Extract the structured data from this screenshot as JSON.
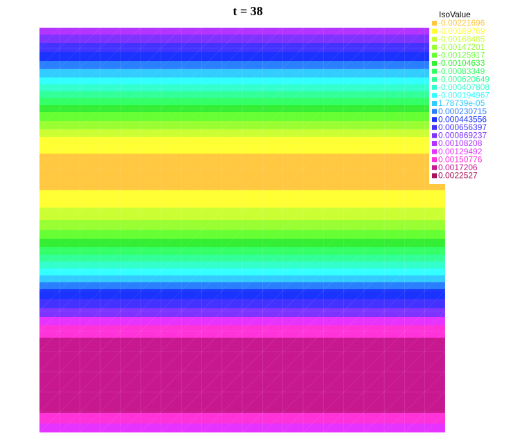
{
  "title": "t = 38",
  "legend": {
    "title": "IsoValue",
    "items": [
      {
        "label": "-0.00221696",
        "color": "#ffc840"
      },
      {
        "label": "-0.00189769",
        "color": "#ffff33"
      },
      {
        "label": "-0.00168485",
        "color": "#ccff33"
      },
      {
        "label": "-0.00147201",
        "color": "#99ff33"
      },
      {
        "label": "-0.00125917",
        "color": "#66ff33"
      },
      {
        "label": "-0.00104633",
        "color": "#33ee33"
      },
      {
        "label": "-0.00083349",
        "color": "#33ff66"
      },
      {
        "label": "-0.000620649",
        "color": "#33ff99"
      },
      {
        "label": "-0.000407808",
        "color": "#33ffcc"
      },
      {
        "label": "-0.000194967",
        "color": "#33ffff"
      },
      {
        "label": "1.78739e-05",
        "color": "#33ccff"
      },
      {
        "label": "0.000230715",
        "color": "#2a7fff"
      },
      {
        "label": "0.000443556",
        "color": "#1a33ff"
      },
      {
        "label": "0.000656397",
        "color": "#4433ff"
      },
      {
        "label": "0.000869237",
        "color": "#7f33ff"
      },
      {
        "label": "0.00108208",
        "color": "#b333ff"
      },
      {
        "label": "0.00129492",
        "color": "#e633ff"
      },
      {
        "label": "0.00150776",
        "color": "#ff33d9"
      },
      {
        "label": "0.0017206",
        "color": "#c81890"
      },
      {
        "label": "0.0022527",
        "color": "#a8105a"
      }
    ]
  }
}
